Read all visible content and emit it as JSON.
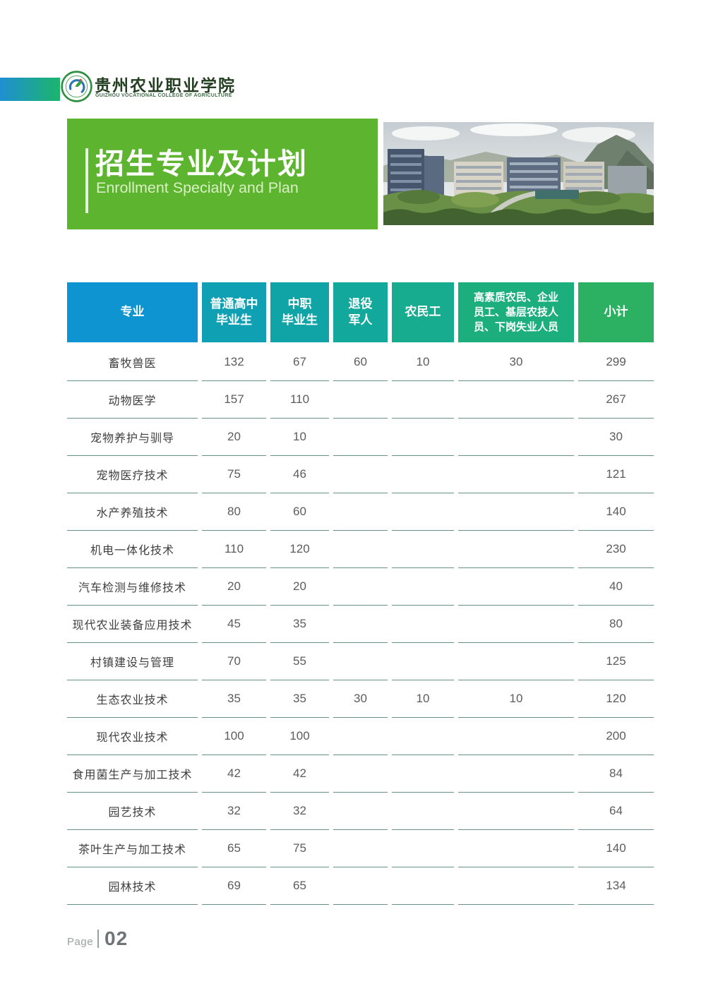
{
  "brand": {
    "name_cn": "贵州农业职业学院",
    "name_en": "GUIZHOU VOCATIONAL COLLEGE OF AGRICULTURE",
    "bar_gradient_from": "#1f8fd2",
    "bar_gradient_to": "#1cb56b"
  },
  "banner": {
    "title_cn": "招生专业及计划",
    "title_en": "Enrollment Specialty and Plan",
    "color": "#5cb42f"
  },
  "table": {
    "line_color": "#6a8f88",
    "columns": [
      {
        "label": "专业",
        "color": "#0d94d1"
      },
      {
        "label": "普通高中\n毕业生",
        "color": "#0fa0b4"
      },
      {
        "label": "中职\n毕业生",
        "color": "#11a4a7"
      },
      {
        "label": "退役\n军人",
        "color": "#13a89c"
      },
      {
        "label": "农民工",
        "color": "#17ab90"
      },
      {
        "label": "高素质农民、企业\n员工、基层农技人\n员、下岗失业人员",
        "color": "#1dae7e"
      },
      {
        "label": "小计",
        "color": "#2cb163"
      }
    ],
    "rows": [
      {
        "specialty": "畜牧兽医",
        "values": [
          "132",
          "67",
          "60",
          "10",
          "30"
        ],
        "subtotal": "299"
      },
      {
        "specialty": "动物医学",
        "values": [
          "157",
          "110",
          "",
          "",
          ""
        ],
        "subtotal": "267"
      },
      {
        "specialty": "宠物养护与驯导",
        "values": [
          "20",
          "10",
          "",
          "",
          ""
        ],
        "subtotal": "30"
      },
      {
        "specialty": "宠物医疗技术",
        "values": [
          "75",
          "46",
          "",
          "",
          ""
        ],
        "subtotal": "121"
      },
      {
        "specialty": "水产养殖技术",
        "values": [
          "80",
          "60",
          "",
          "",
          ""
        ],
        "subtotal": "140"
      },
      {
        "specialty": "机电一体化技术",
        "values": [
          "110",
          "120",
          "",
          "",
          ""
        ],
        "subtotal": "230"
      },
      {
        "specialty": "汽车检测与维修技术",
        "values": [
          "20",
          "20",
          "",
          "",
          ""
        ],
        "subtotal": "40"
      },
      {
        "specialty": "现代农业装备应用技术",
        "values": [
          "45",
          "35",
          "",
          "",
          ""
        ],
        "subtotal": "80"
      },
      {
        "specialty": "村镇建设与管理",
        "values": [
          "70",
          "55",
          "",
          "",
          ""
        ],
        "subtotal": "125"
      },
      {
        "specialty": "生态农业技术",
        "values": [
          "35",
          "35",
          "30",
          "10",
          "10"
        ],
        "subtotal": "120"
      },
      {
        "specialty": "现代农业技术",
        "values": [
          "100",
          "100",
          "",
          "",
          ""
        ],
        "subtotal": "200"
      },
      {
        "specialty": "食用菌生产与加工技术",
        "values": [
          "42",
          "42",
          "",
          "",
          ""
        ],
        "subtotal": "84"
      },
      {
        "specialty": "园艺技术",
        "values": [
          "32",
          "32",
          "",
          "",
          ""
        ],
        "subtotal": "64"
      },
      {
        "specialty": "茶叶生产与加工技术",
        "values": [
          "65",
          "75",
          "",
          "",
          ""
        ],
        "subtotal": "140"
      },
      {
        "specialty": "园林技术",
        "values": [
          "69",
          "65",
          "",
          "",
          ""
        ],
        "subtotal": "134"
      }
    ]
  },
  "footer": {
    "page_label": "Page",
    "page_number": "02"
  }
}
